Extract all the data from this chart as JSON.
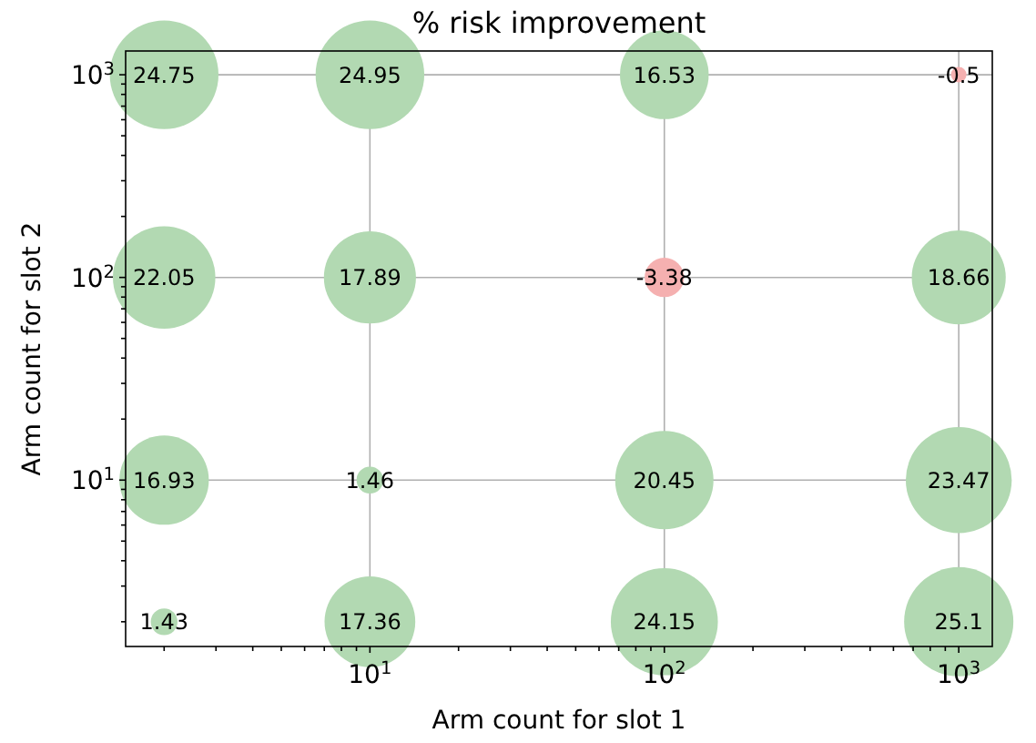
{
  "chart_data": {
    "type": "bubble",
    "title": "% risk improvement",
    "xlabel": "Arm count for slot 1",
    "ylabel": "Arm count for slot 2",
    "log": "xy",
    "grid": true,
    "xlim": [
      1.48,
      1300
    ],
    "ylim": [
      1.51,
      1310
    ],
    "xticks": [
      {
        "value": 2,
        "label": null
      },
      {
        "value": 3,
        "label": null
      },
      {
        "value": 4,
        "label": null
      },
      {
        "value": 5,
        "label": null
      },
      {
        "value": 6,
        "label": null
      },
      {
        "value": 7,
        "label": null
      },
      {
        "value": 8,
        "label": null
      },
      {
        "value": 9,
        "label": null
      },
      {
        "value": 10,
        "label": "10$^{1}$"
      },
      {
        "value": 20,
        "label": null
      },
      {
        "value": 30,
        "label": null
      },
      {
        "value": 40,
        "label": null
      },
      {
        "value": 50,
        "label": null
      },
      {
        "value": 60,
        "label": null
      },
      {
        "value": 70,
        "label": null
      },
      {
        "value": 80,
        "label": null
      },
      {
        "value": 90,
        "label": null
      },
      {
        "value": 100,
        "label": "10$^{2}$"
      },
      {
        "value": 200,
        "label": null
      },
      {
        "value": 300,
        "label": null
      },
      {
        "value": 400,
        "label": null
      },
      {
        "value": 500,
        "label": null
      },
      {
        "value": 600,
        "label": null
      },
      {
        "value": 700,
        "label": null
      },
      {
        "value": 800,
        "label": null
      },
      {
        "value": 900,
        "label": null
      },
      {
        "value": 1000,
        "label": "10$^{3}$"
      }
    ],
    "yticks": [
      {
        "value": 2,
        "label": null
      },
      {
        "value": 3,
        "label": null
      },
      {
        "value": 4,
        "label": null
      },
      {
        "value": 5,
        "label": null
      },
      {
        "value": 6,
        "label": null
      },
      {
        "value": 7,
        "label": null
      },
      {
        "value": 8,
        "label": null
      },
      {
        "value": 9,
        "label": null
      },
      {
        "value": 10,
        "label": "10$^{1}$"
      },
      {
        "value": 20,
        "label": null
      },
      {
        "value": 30,
        "label": null
      },
      {
        "value": 40,
        "label": null
      },
      {
        "value": 50,
        "label": null
      },
      {
        "value": 60,
        "label": null
      },
      {
        "value": 70,
        "label": null
      },
      {
        "value": 80,
        "label": null
      },
      {
        "value": 90,
        "label": null
      },
      {
        "value": 100,
        "label": "10$^{2}$"
      },
      {
        "value": 200,
        "label": null
      },
      {
        "value": 300,
        "label": null
      },
      {
        "value": 400,
        "label": null
      },
      {
        "value": 500,
        "label": null
      },
      {
        "value": 600,
        "label": null
      },
      {
        "value": 700,
        "label": null
      },
      {
        "value": 800,
        "label": null
      },
      {
        "value": 900,
        "label": null
      },
      {
        "value": 1000,
        "label": "10$^{3}$"
      }
    ],
    "x": [
      2,
      10,
      100,
      1000,
      2,
      10,
      100,
      1000,
      2,
      10,
      100,
      1000,
      2,
      10,
      100,
      1000
    ],
    "values": [
      1000,
      1000,
      1000,
      1000,
      100,
      100,
      100,
      100,
      10,
      10,
      10,
      10,
      2,
      2,
      2,
      2
    ],
    "sizes": [
      0.99,
      0.99,
      0.66,
      0.02,
      0.88,
      0.71,
      0.13,
      0.74,
      0.67,
      0.06,
      0.81,
      0.94,
      0.06,
      0.69,
      0.96,
      1
    ],
    "annotations": [
      {
        "text": "24.75",
        "x": 2,
        "y": 1000
      },
      {
        "text": "24.95",
        "x": 10,
        "y": 1000
      },
      {
        "text": "16.53",
        "x": 100,
        "y": 1000
      },
      {
        "text": "-0.5",
        "x": 1000,
        "y": 1000
      },
      {
        "text": "22.05",
        "x": 2,
        "y": 100
      },
      {
        "text": "17.89",
        "x": 10,
        "y": 100
      },
      {
        "text": "-3.38",
        "x": 100,
        "y": 100
      },
      {
        "text": "18.66",
        "x": 1000,
        "y": 100
      },
      {
        "text": "16.93",
        "x": 2,
        "y": 10
      },
      {
        "text": "1.46",
        "x": 10,
        "y": 10
      },
      {
        "text": "20.45",
        "x": 100,
        "y": 10
      },
      {
        "text": "23.47",
        "x": 1000,
        "y": 10
      },
      {
        "text": "1.43",
        "x": 2,
        "y": 2
      },
      {
        "text": "17.36",
        "x": 10,
        "y": 2
      },
      {
        "text": "24.15",
        "x": 100,
        "y": 2
      },
      {
        "text": "25.1",
        "x": 1000,
        "y": 2
      }
    ],
    "colors": [
      "#b2d9b2",
      "#b2d9b2",
      "#b2d9b2",
      "#f5b0b0",
      "#b2d9b2",
      "#b2d9b2",
      "#f5b0b0",
      "#b2d9b2",
      "#b2d9b2",
      "#b2d9b2",
      "#b2d9b2",
      "#b2d9b2",
      "#b2d9b2",
      "#b2d9b2",
      "#b2d9b2",
      "#b2d9b2"
    ]
  }
}
